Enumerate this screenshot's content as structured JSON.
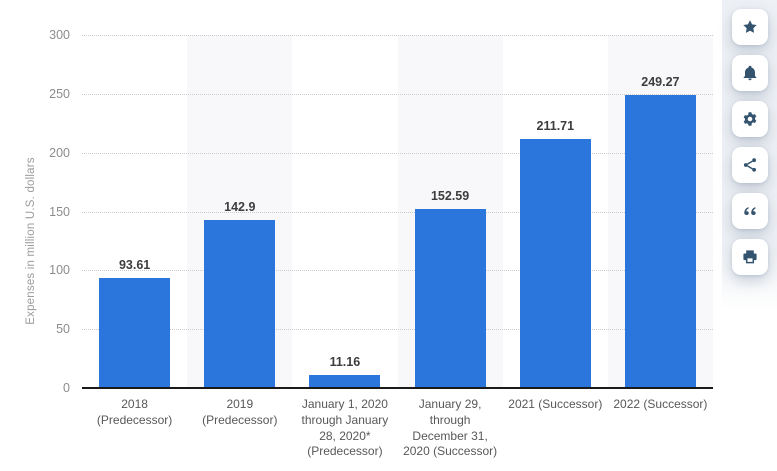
{
  "chart_data": {
    "type": "bar",
    "title": "",
    "xlabel": "",
    "ylabel": "Expenses in million U.S. dollars",
    "ylim": [
      0,
      300
    ],
    "yticks": [
      0,
      50,
      100,
      150,
      200,
      250,
      300
    ],
    "grid": "horizontal dotted gridlines",
    "legend": "none",
    "categories": [
      "2018 (Predecessor)",
      "2019 (Predecessor)",
      "January 1, 2020 through January 28, 2020* (Predecessor)",
      "January 29, through December 31, 2020 (Successor)",
      "2021 (Successor)",
      "2022 (Successor)"
    ],
    "category_label_lines": [
      [
        "2018",
        "(Predecessor)"
      ],
      [
        "2019",
        "(Predecessor)"
      ],
      [
        "January 1, 2020",
        "through January",
        "28, 2020*",
        "(Predecessor)"
      ],
      [
        "January 29,",
        "through",
        "December 31,",
        "2020 (Successor)"
      ],
      [
        "2021 (Successor)"
      ],
      [
        "2022 (Successor)"
      ]
    ],
    "values": [
      93.61,
      142.9,
      11.16,
      152.59,
      211.71,
      249.27
    ],
    "value_labels": [
      "93.61",
      "142.9",
      "11.16",
      "152.59",
      "211.71",
      "249.27"
    ],
    "bar_color": "#2b76dd",
    "alternate_band_color": "#f8f8fa",
    "banded_column_indexes": [
      1,
      3,
      5
    ]
  },
  "toolbar": {
    "icon_color": "#33536e",
    "button_background": "#ffffff",
    "buttons": [
      {
        "label": "favorite",
        "icon": "star-icon"
      },
      {
        "label": "notifications",
        "icon": "bell-icon"
      },
      {
        "label": "settings",
        "icon": "gear-icon"
      },
      {
        "label": "share",
        "icon": "share-icon"
      },
      {
        "label": "cite",
        "icon": "quote-icon"
      },
      {
        "label": "print",
        "icon": "print-icon"
      }
    ]
  },
  "theme": {
    "background": "#ffffff",
    "axis_line_color": "#1a1a1a",
    "gridline_color": "#cccccc",
    "tick_label_color": "#8c8c8c",
    "axis_title_color": "#9b9b9b",
    "category_label_color": "#58585a",
    "value_label_color": "#3d3d3d",
    "toolbar_rail_color": "#edf0f4"
  }
}
